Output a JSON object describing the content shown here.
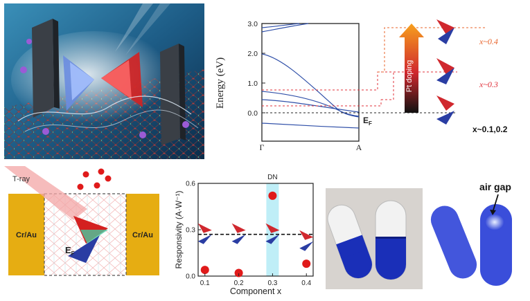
{
  "figure": {
    "panel_a": {
      "kind": "schematic",
      "description_icons": [
        "plate-electrode-icon",
        "dirac-cone-icon",
        "electron-sphere-icon",
        "lattice-icon"
      ]
    },
    "panel_b": {
      "kind": "band-structure",
      "y_axis_label": "Energy (eV)",
      "y_ticks": [
        "0.0",
        "1.0",
        "2.0",
        "3.0"
      ],
      "x_ticks": [
        "Γ",
        "A"
      ],
      "fermi_label": "E",
      "fermi_sub": "F",
      "doping_label": "Pt doping",
      "levels": [
        {
          "label": "x~0.4",
          "color": "#e8632a"
        },
        {
          "label": "x~0.3",
          "color": "#e0303a"
        },
        {
          "label": "x~0.1,0.2",
          "color": "#111111"
        }
      ]
    },
    "panel_c": {
      "kind": "device-schematic",
      "left_contact": "Cr/Au",
      "right_contact": "Cr/Au",
      "beam_label": "T-ray",
      "fermi_label": "E",
      "fermi_sub": "F"
    },
    "panel_d": {
      "kind": "scatter",
      "highlight_label": "DN",
      "air_gap_label": "air gap"
    },
    "colors": {
      "band": "#2f4fa8",
      "gold": "#e6ad12",
      "red_dot": "#e01a1a",
      "highlight": "#bfeef7",
      "capsule_blue": "#1a2fb8"
    }
  },
  "chart_data": {
    "type": "scatter",
    "title": "",
    "xlabel": "Component x",
    "ylabel": "Responsivity (A·W⁻¹)",
    "x": [
      0.1,
      0.2,
      0.3,
      0.4
    ],
    "xlim": [
      0.08,
      0.42
    ],
    "ylim": [
      0,
      0.6
    ],
    "x_ticks": [
      "0.1",
      "0.2",
      "0.3",
      "0.4"
    ],
    "y_ticks": [
      "0.0",
      "0.3",
      "0.6"
    ],
    "series": [
      {
        "values": [
          0.04,
          0.02,
          0.52,
          0.08
        ]
      }
    ],
    "reference_line": 0.27,
    "highlight_x": 0.3,
    "grid": false
  }
}
